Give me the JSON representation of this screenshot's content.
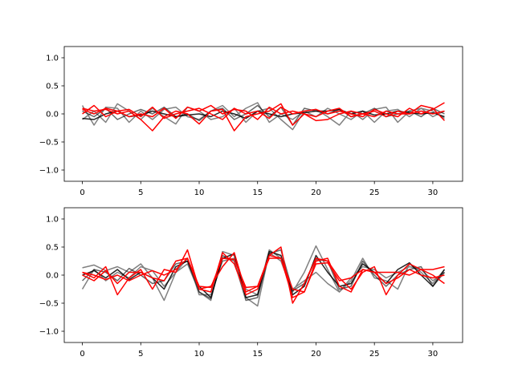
{
  "figure": {
    "background": "#ffffff",
    "series_colors": [
      "#808080",
      "#000000",
      "#ff0000"
    ]
  },
  "chart_data": [
    {
      "type": "line",
      "xlim": [
        -1.55,
        32.55
      ],
      "ylim": [
        -1.2,
        1.2
      ],
      "x_ticks": [
        0,
        5,
        10,
        15,
        20,
        25,
        30
      ],
      "y_ticks": [
        -1.0,
        -0.5,
        0.0,
        0.5,
        1.0
      ],
      "x_tick_labels": [
        "0",
        "5",
        "10",
        "15",
        "20",
        "25",
        "30"
      ],
      "y_tick_labels": [
        "−1.0",
        "−0.5",
        "0.0",
        "0.5",
        "1.0"
      ],
      "grid": false,
      "x": [
        0,
        1,
        2,
        3,
        4,
        5,
        6,
        7,
        8,
        9,
        10,
        11,
        12,
        13,
        14,
        15,
        16,
        17,
        18,
        19,
        20,
        21,
        22,
        23,
        24,
        25,
        26,
        27,
        28,
        29,
        30,
        31
      ],
      "series": [
        {
          "color": "#808080",
          "opacity": 1.0,
          "values": [
            0.15,
            -0.2,
            0.12,
            0.1,
            -0.15,
            0.05,
            -0.1,
            0.08,
            0.12,
            -0.05,
            -0.1,
            0.05,
            0.15,
            -0.05,
            0.1,
            0.2,
            -0.15,
            0.0,
            -0.1,
            0.05,
            0.08,
            -0.05,
            -0.2,
            0.05,
            -0.1,
            0.08,
            0.12,
            -0.15,
            0.05,
            0.1,
            -0.05,
            0.05
          ]
        },
        {
          "color": "#808080",
          "opacity": 1.0,
          "values": [
            -0.1,
            0.05,
            -0.15,
            0.18,
            0.05,
            -0.1,
            0.1,
            -0.05,
            -0.18,
            0.12,
            0.05,
            -0.1,
            -0.05,
            0.1,
            -0.15,
            0.05,
            0.1,
            -0.1,
            -0.28,
            0.05,
            -0.05,
            0.1,
            0.0,
            -0.1,
            0.05,
            -0.15,
            0.05,
            0.08,
            -0.05,
            0.1,
            0.05,
            -0.08
          ]
        },
        {
          "color": "#000000",
          "opacity": 0.6,
          "values": [
            0.05,
            -0.05,
            0.1,
            -0.1,
            0.0,
            0.08,
            0.0,
            0.12,
            -0.05,
            0.0,
            -0.12,
            0.05,
            0.1,
            -0.1,
            0.0,
            0.15,
            -0.05,
            0.12,
            -0.2,
            0.1,
            0.05,
            0.0,
            0.08,
            -0.05,
            0.0,
            0.1,
            -0.05,
            0.0,
            0.05,
            -0.05,
            0.1,
            0.0
          ]
        },
        {
          "color": "#000000",
          "opacity": 0.85,
          "values": [
            -0.08,
            -0.1,
            0.0,
            0.05,
            -0.05,
            -0.02,
            0.05,
            0.0,
            -0.05,
            -0.02,
            0.0,
            -0.05,
            0.05,
            0.0,
            -0.08,
            0.05,
            0.0,
            -0.05,
            0.0,
            0.02,
            0.05,
            0.05,
            0.08,
            0.0,
            0.05,
            -0.02,
            0.0,
            0.05,
            0.02,
            0.0,
            0.02,
            -0.05
          ]
        },
        {
          "color": "#ff0000",
          "opacity": 1.0,
          "values": [
            0.1,
            0.05,
            0.08,
            0.0,
            0.05,
            -0.1,
            -0.3,
            -0.05,
            0.05,
            0.0,
            -0.18,
            0.05,
            0.08,
            -0.3,
            -0.05,
            0.0,
            0.05,
            0.18,
            -0.2,
            0.0,
            -0.12,
            -0.1,
            0.0,
            0.05,
            0.0,
            -0.05,
            0.05,
            0.0,
            0.0,
            0.15,
            0.1,
            -0.12
          ]
        },
        {
          "color": "#ff0000",
          "opacity": 1.0,
          "values": [
            0.08,
            0.0,
            0.1,
            0.05,
            -0.05,
            0.0,
            -0.05,
            0.1,
            -0.08,
            0.12,
            0.05,
            0.15,
            0.0,
            0.08,
            0.05,
            -0.1,
            0.12,
            0.0,
            0.05,
            0.0,
            -0.05,
            0.05,
            0.1,
            -0.05,
            0.0,
            0.05,
            -0.05,
            0.05,
            0.0,
            0.05,
            0.0,
            0.05
          ]
        },
        {
          "color": "#ff0000",
          "opacity": 1.0,
          "values": [
            0.0,
            0.15,
            -0.05,
            0.05,
            0.08,
            -0.05,
            0.12,
            -0.08,
            0.0,
            0.05,
            0.1,
            0.0,
            -0.1,
            0.1,
            0.0,
            0.05,
            -0.08,
            0.12,
            0.0,
            0.05,
            0.08,
            0.0,
            0.05,
            0.0,
            -0.05,
            0.08,
            0.0,
            -0.05,
            0.1,
            0.0,
            0.08,
            0.2
          ]
        }
      ]
    },
    {
      "type": "line",
      "xlim": [
        -1.55,
        32.55
      ],
      "ylim": [
        -1.2,
        1.2
      ],
      "x_ticks": [
        0,
        5,
        10,
        15,
        20,
        25,
        30
      ],
      "y_ticks": [
        -1.0,
        -0.5,
        0.0,
        0.5,
        1.0
      ],
      "x_tick_labels": [
        "0",
        "5",
        "10",
        "15",
        "20",
        "25",
        "30"
      ],
      "y_tick_labels": [
        "−1.0",
        "−0.5",
        "0.0",
        "0.5",
        "1.0"
      ],
      "grid": false,
      "x": [
        0,
        1,
        2,
        3,
        4,
        5,
        6,
        7,
        8,
        9,
        10,
        11,
        12,
        13,
        14,
        15,
        16,
        17,
        18,
        19,
        20,
        21,
        22,
        23,
        24,
        25,
        26,
        27,
        28,
        29,
        30,
        31
      ],
      "series": [
        {
          "color": "#808080",
          "opacity": 1.0,
          "values": [
            0.13,
            0.18,
            0.08,
            0.15,
            0.05,
            0.2,
            -0.05,
            -0.45,
            0.05,
            0.2,
            -0.3,
            -0.45,
            0.42,
            0.35,
            -0.4,
            -0.55,
            0.4,
            0.25,
            -0.3,
            0.05,
            0.52,
            0.1,
            -0.3,
            -0.1,
            0.3,
            -0.05,
            -0.1,
            -0.25,
            0.2,
            0.05,
            -0.15,
            0.1
          ]
        },
        {
          "color": "#808080",
          "opacity": 1.0,
          "values": [
            -0.25,
            0.1,
            -0.1,
            0.05,
            -0.05,
            0.15,
            0.08,
            -0.2,
            0.05,
            0.3,
            -0.35,
            -0.35,
            0.25,
            0.3,
            -0.25,
            -0.35,
            0.45,
            0.3,
            -0.25,
            -0.1,
            0.05,
            -0.15,
            -0.3,
            -0.05,
            0.15,
            0.1,
            -0.05,
            0.05,
            0.15,
            0.1,
            -0.1,
            0.05
          ]
        },
        {
          "color": "#000000",
          "opacity": 0.85,
          "values": [
            0.0,
            0.08,
            -0.05,
            0.1,
            -0.08,
            0.05,
            -0.05,
            -0.25,
            0.15,
            0.25,
            -0.2,
            -0.4,
            0.3,
            0.38,
            -0.4,
            -0.35,
            0.42,
            0.35,
            -0.35,
            -0.2,
            0.35,
            0.05,
            -0.2,
            -0.15,
            0.2,
            0.05,
            -0.15,
            0.1,
            0.22,
            0.0,
            -0.2,
            0.1
          ]
        },
        {
          "color": "#000000",
          "opacity": 0.6,
          "values": [
            -0.1,
            0.1,
            0.05,
            -0.1,
            0.12,
            0.0,
            -0.15,
            -0.1,
            0.2,
            0.25,
            -0.3,
            -0.42,
            0.35,
            0.25,
            -0.45,
            -0.4,
            0.38,
            0.45,
            -0.28,
            -0.15,
            0.28,
            0.25,
            -0.25,
            -0.2,
            0.25,
            0.0,
            -0.2,
            0.0,
            0.1,
            0.15,
            -0.2,
            0.05
          ]
        },
        {
          "color": "#ff0000",
          "opacity": 1.0,
          "values": [
            0.05,
            -0.05,
            0.15,
            -0.35,
            -0.05,
            0.1,
            -0.25,
            0.1,
            0.05,
            0.45,
            -0.25,
            -0.2,
            0.15,
            0.4,
            -0.3,
            -0.2,
            0.35,
            0.5,
            -0.5,
            -0.15,
            0.3,
            0.25,
            -0.05,
            -0.25,
            0.05,
            0.15,
            -0.35,
            0.0,
            0.2,
            0.1,
            0.0,
            -0.15
          ]
        },
        {
          "color": "#ff0000",
          "opacity": 1.0,
          "values": [
            0.0,
            -0.1,
            0.08,
            -0.15,
            0.05,
            0.05,
            -0.05,
            -0.1,
            0.25,
            0.3,
            -0.25,
            -0.3,
            0.4,
            0.2,
            -0.35,
            -0.25,
            0.35,
            0.3,
            -0.4,
            -0.3,
            0.25,
            0.3,
            -0.2,
            -0.3,
            0.1,
            0.05,
            -0.15,
            -0.05,
            0.1,
            0.0,
            -0.05,
            0.0
          ]
        },
        {
          "color": "#ff0000",
          "opacity": 1.0,
          "values": [
            0.05,
            0.0,
            -0.08,
            0.0,
            -0.1,
            0.0,
            0.08,
            0.0,
            0.1,
            0.3,
            -0.2,
            -0.22,
            0.3,
            0.28,
            -0.22,
            -0.2,
            0.3,
            0.3,
            -0.25,
            -0.3,
            0.2,
            0.22,
            -0.1,
            -0.05,
            0.1,
            0.05,
            0.05,
            0.05,
            0.0,
            0.1,
            0.1,
            0.15
          ]
        }
      ]
    }
  ]
}
